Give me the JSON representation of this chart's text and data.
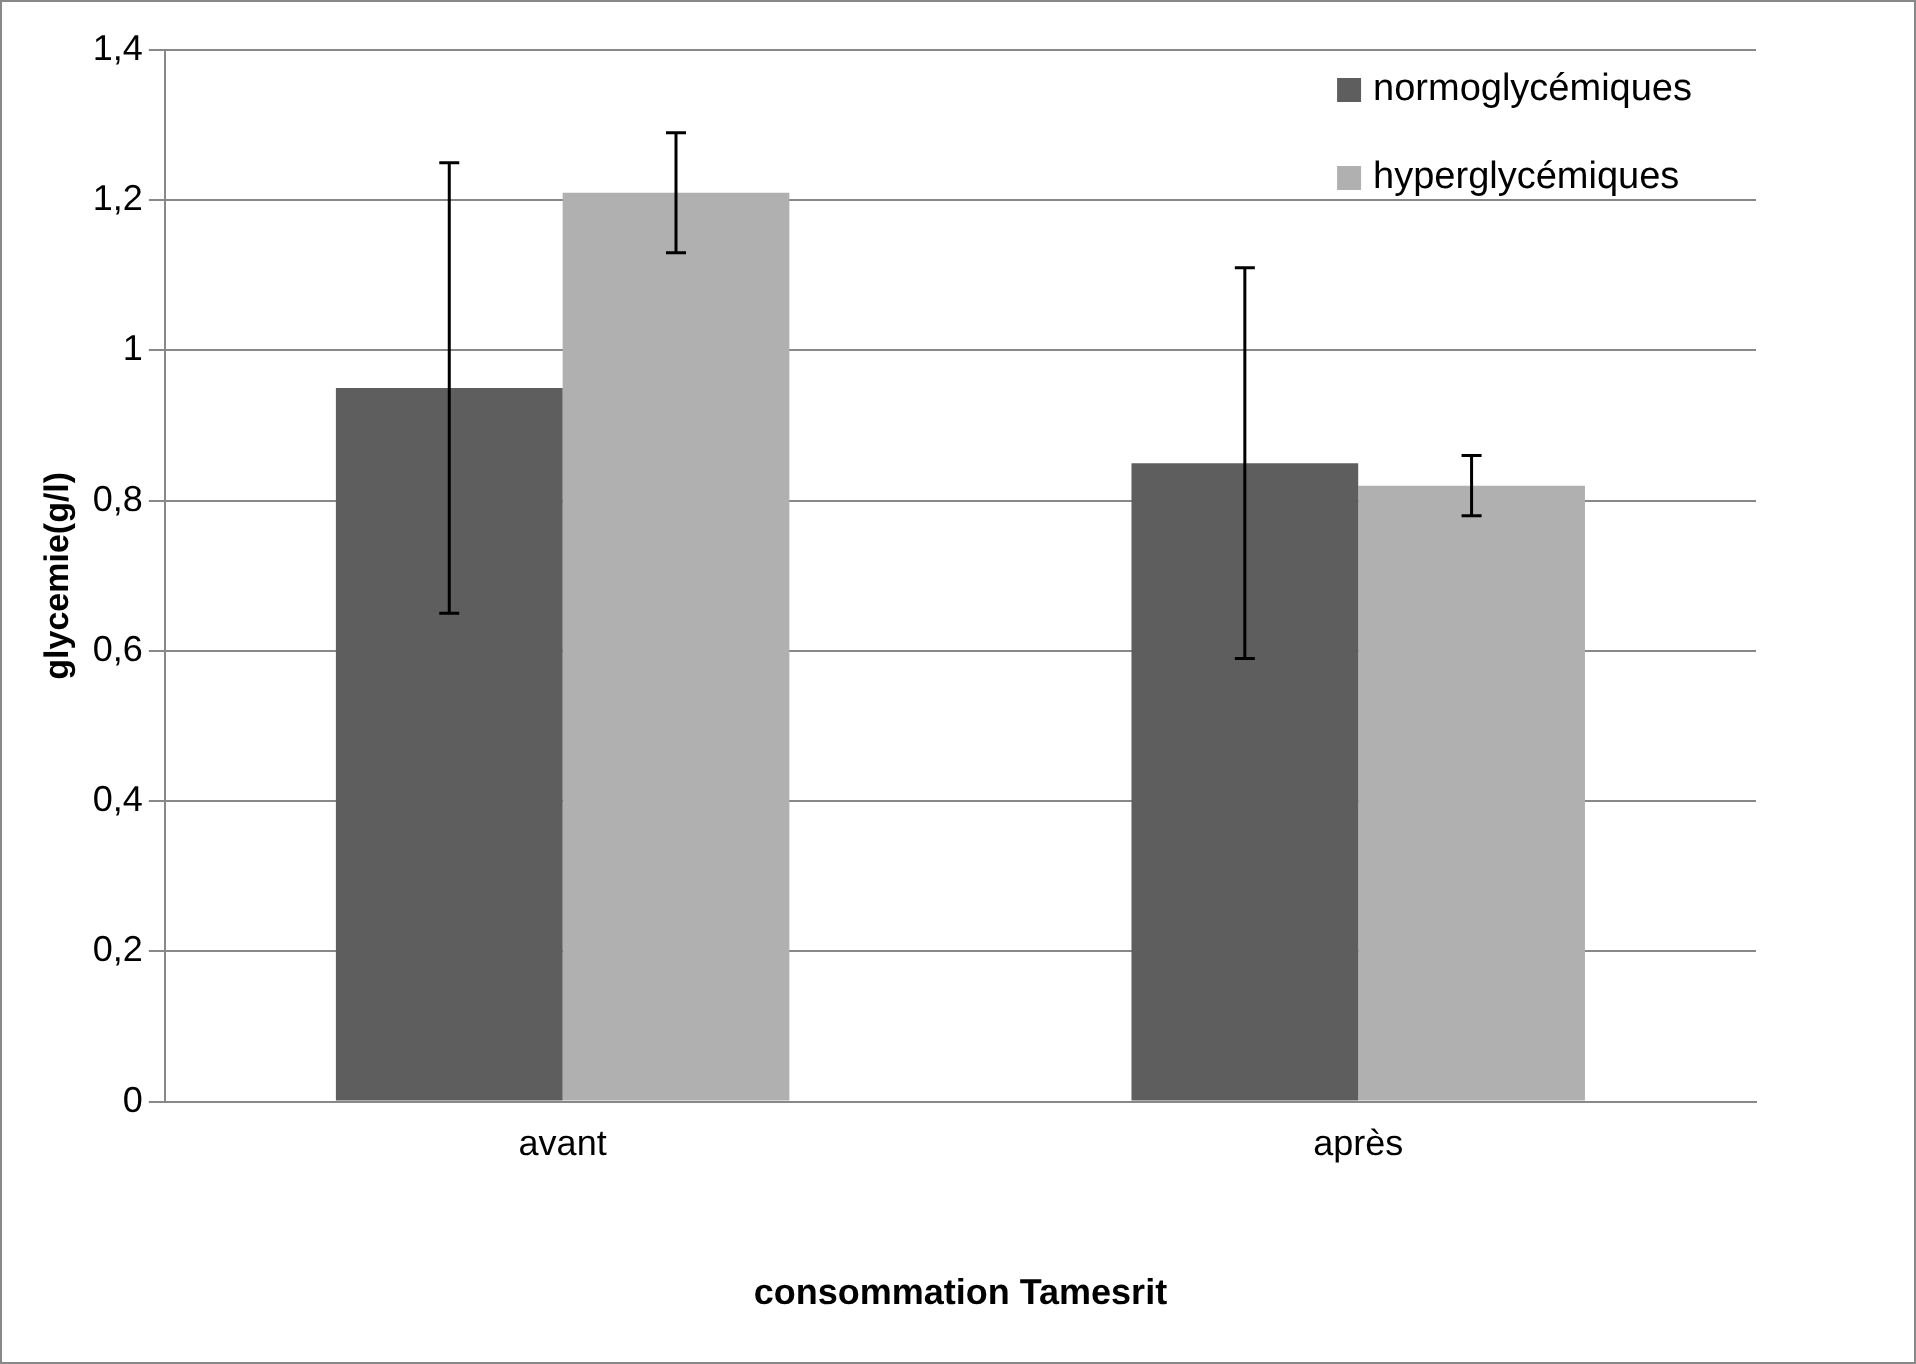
{
  "chart_data": {
    "type": "bar",
    "xlabel": "consommation Tamesrit",
    "ylabel": "glycemie(g/l)",
    "categories": [
      "avant",
      "après"
    ],
    "series": [
      {
        "name": "normoglycémiques",
        "color": "#5e5e5e",
        "values": [
          0.95,
          0.85
        ],
        "errors": [
          [
            0.65,
            1.25
          ],
          [
            0.59,
            1.11
          ]
        ]
      },
      {
        "name": "hyperglycémiques",
        "color": "#b0b0b0",
        "values": [
          1.21,
          0.82
        ],
        "errors": [
          [
            1.13,
            1.29
          ],
          [
            0.78,
            0.86
          ]
        ]
      }
    ],
    "ylim": [
      0,
      1.4
    ],
    "yticks": [
      0,
      {
        "value": 0.2,
        "label": "0,2"
      },
      {
        "value": 0.4,
        "label": "0,4"
      },
      {
        "value": 0.6,
        "label": "0,6"
      },
      {
        "value": 0.8,
        "label": "0,8"
      },
      1,
      {
        "value": 1.2,
        "label": "1,2"
      },
      {
        "value": 1.4,
        "label": "1,4"
      }
    ],
    "grid": "y",
    "legend": "top right"
  }
}
